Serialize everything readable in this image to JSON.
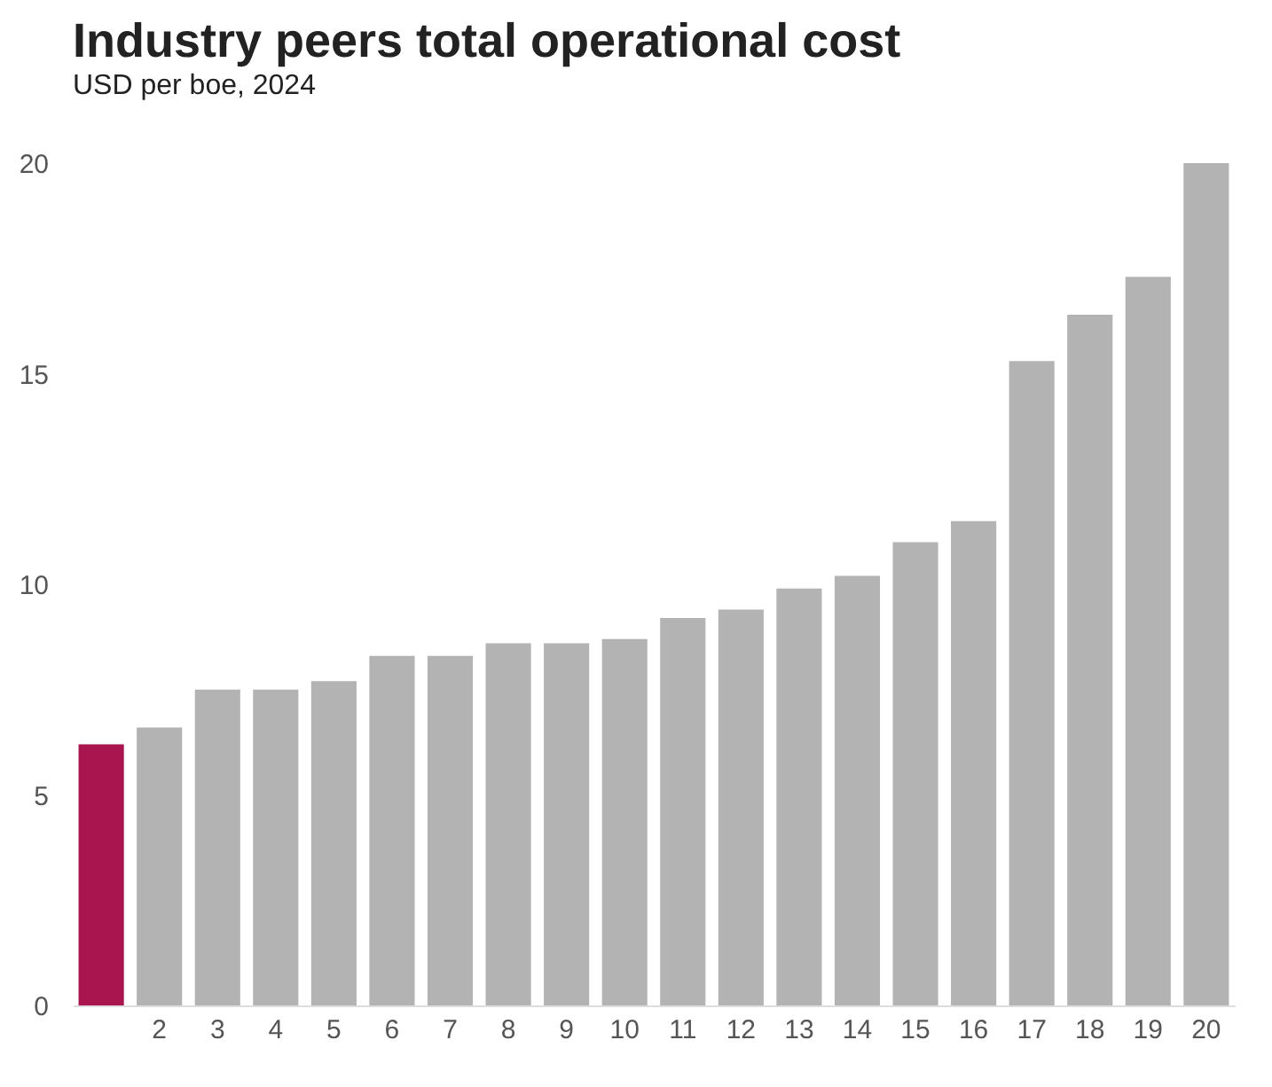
{
  "chart_data": {
    "type": "bar",
    "title": "Industry peers total operational cost",
    "subtitle": "USD per boe, 2024",
    "categories": [
      null,
      "2",
      "3",
      "4",
      "5",
      "6",
      "7",
      "8",
      "9",
      "10",
      "11",
      "12",
      "13",
      "14",
      "15",
      "16",
      "17",
      "18",
      "19",
      "20"
    ],
    "values": [
      6.2,
      6.6,
      7.5,
      7.5,
      7.7,
      8.3,
      8.3,
      8.6,
      8.6,
      8.7,
      9.2,
      9.4,
      9.9,
      10.2,
      11.0,
      11.5,
      15.3,
      16.4,
      17.3,
      20.0
    ],
    "colors": [
      "#a8154f",
      "#b3b3b3",
      "#b3b3b3",
      "#b3b3b3",
      "#b3b3b3",
      "#b3b3b3",
      "#b3b3b3",
      "#b3b3b3",
      "#b3b3b3",
      "#b3b3b3",
      "#b3b3b3",
      "#b3b3b3",
      "#b3b3b3",
      "#b3b3b3",
      "#b3b3b3",
      "#b3b3b3",
      "#b3b3b3",
      "#b3b3b3",
      "#b3b3b3",
      "#b3b3b3"
    ],
    "ylim": [
      0,
      20
    ],
    "yticks": [
      0,
      5,
      10,
      15,
      20
    ],
    "grid": false
  }
}
